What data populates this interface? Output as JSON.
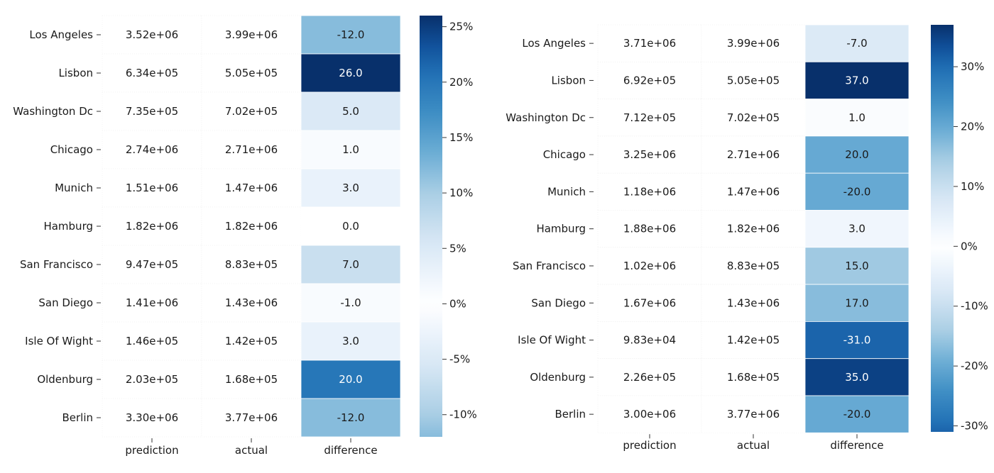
{
  "chart_data": [
    {
      "type": "heatmap",
      "rows": [
        "Los Angeles",
        "Lisbon",
        "Washington Dc",
        "Chicago",
        "Munich",
        "Hamburg",
        "San Francisco",
        "San Diego",
        "Isle Of Wight",
        "Oldenburg",
        "Berlin"
      ],
      "columns": [
        "prediction",
        "actual",
        "difference"
      ],
      "prediction": [
        "3.52e+06",
        "6.34e+05",
        "7.35e+05",
        "2.74e+06",
        "1.51e+06",
        "1.82e+06",
        "9.47e+05",
        "1.41e+06",
        "1.46e+05",
        "2.03e+05",
        "3.30e+06"
      ],
      "actual": [
        "3.99e+06",
        "5.05e+05",
        "7.02e+05",
        "2.71e+06",
        "1.47e+06",
        "1.82e+06",
        "8.83e+05",
        "1.43e+06",
        "1.42e+05",
        "1.68e+05",
        "3.77e+06"
      ],
      "difference": [
        -12.0,
        26.0,
        5.0,
        1.0,
        3.0,
        0.0,
        7.0,
        -1.0,
        3.0,
        20.0,
        -12.0
      ],
      "difference_labels": [
        "-12.0",
        "26.0",
        "5.0",
        "1.0",
        "3.0",
        "0.0",
        "7.0",
        "-1.0",
        "3.0",
        "20.0",
        "-12.0"
      ],
      "colorbar": {
        "ticks": [
          "25%",
          "20%",
          "15%",
          "10%",
          "5%",
          "0%",
          "-5%",
          "-10%"
        ],
        "tick_values": [
          25,
          20,
          15,
          10,
          5,
          0,
          -5,
          -10
        ],
        "range": [
          -12,
          26
        ],
        "colormap": "Blues, diverging around 0"
      }
    },
    {
      "type": "heatmap",
      "rows": [
        "Los Angeles",
        "Lisbon",
        "Washington Dc",
        "Chicago",
        "Munich",
        "Hamburg",
        "San Francisco",
        "San Diego",
        "Isle Of Wight",
        "Oldenburg",
        "Berlin"
      ],
      "columns": [
        "prediction",
        "actual",
        "difference"
      ],
      "prediction": [
        "3.71e+06",
        "6.92e+05",
        "7.12e+05",
        "3.25e+06",
        "1.18e+06",
        "1.88e+06",
        "1.02e+06",
        "1.67e+06",
        "9.83e+04",
        "2.26e+05",
        "3.00e+06"
      ],
      "actual": [
        "3.99e+06",
        "5.05e+05",
        "7.02e+05",
        "2.71e+06",
        "1.47e+06",
        "1.82e+06",
        "8.83e+05",
        "1.43e+06",
        "1.42e+05",
        "1.68e+05",
        "3.77e+06"
      ],
      "difference": [
        -7.0,
        37.0,
        1.0,
        20.0,
        -20.0,
        3.0,
        15.0,
        17.0,
        -31.0,
        35.0,
        -20.0
      ],
      "difference_labels": [
        "-7.0",
        "37.0",
        "1.0",
        "20.0",
        "-20.0",
        "3.0",
        "15.0",
        "17.0",
        "-31.0",
        "35.0",
        "-20.0"
      ],
      "colorbar": {
        "ticks": [
          "30%",
          "20%",
          "10%",
          "0%",
          "-10%",
          "-20%",
          "-30%"
        ],
        "tick_values": [
          30,
          20,
          10,
          0,
          -10,
          -20,
          -30
        ],
        "range": [
          -31,
          37
        ],
        "colormap": "Blues, diverging around 0"
      }
    }
  ]
}
